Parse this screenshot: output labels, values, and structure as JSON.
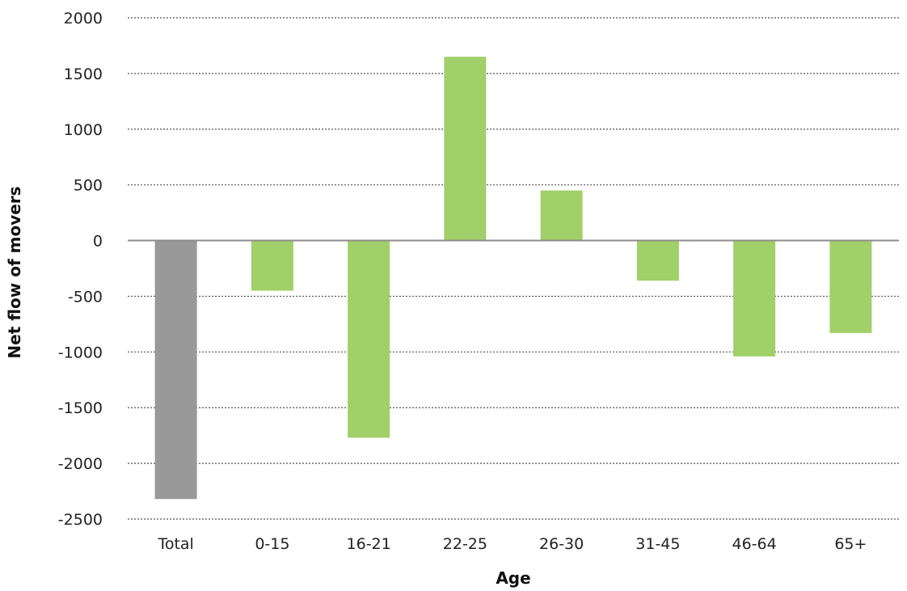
{
  "chart_data": {
    "type": "bar",
    "title": "",
    "xlabel": "Age",
    "ylabel": "Net flow of movers",
    "categories": [
      "Total",
      "0-15",
      "16-21",
      "22-25",
      "26-30",
      "31-45",
      "46-64",
      "65+"
    ],
    "values": [
      -2320,
      -450,
      -1770,
      1650,
      450,
      -360,
      -1040,
      -830
    ],
    "ylim": [
      -2500,
      2000
    ],
    "yticks": [
      2000,
      1500,
      1000,
      500,
      0,
      -500,
      -1000,
      -1500,
      -2000,
      -2500
    ],
    "grid": true,
    "legend": "none",
    "colors": {
      "total": "#999999",
      "bars": "#a1cf69"
    }
  }
}
